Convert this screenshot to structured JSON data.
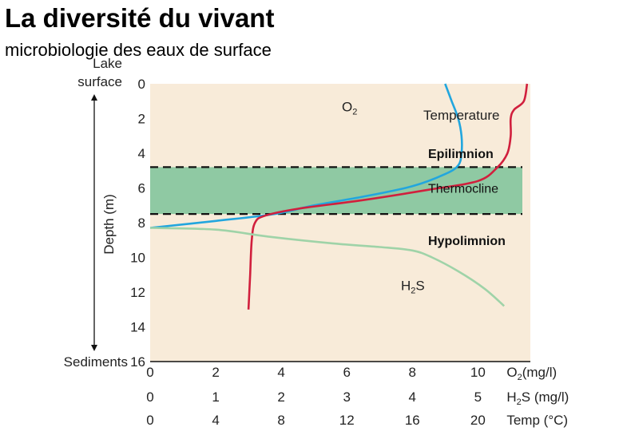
{
  "slide": {
    "title": "La diversité du vivant",
    "subtitle": "microbiologie des eaux de surface"
  },
  "chart_data": {
    "type": "line",
    "title": "",
    "ylabel": "Depth (m)",
    "y_top_label": [
      "Lake",
      "surface"
    ],
    "y_bottom_label": "Sediments",
    "ylim": [
      0,
      16
    ],
    "y_inverted": true,
    "yticks": [
      0,
      2,
      4,
      6,
      8,
      10,
      12,
      14,
      16
    ],
    "x_axes": [
      {
        "name": "O2",
        "unit": "(mg/l)",
        "ticks": [
          0,
          2,
          4,
          6,
          8,
          10
        ]
      },
      {
        "name": "H2S",
        "unit": "(mg/l)",
        "ticks": [
          0,
          1,
          2,
          3,
          4,
          5
        ]
      },
      {
        "name": "Temp",
        "unit": "(°C)",
        "ticks": [
          0,
          4,
          8,
          12,
          16,
          20
        ]
      }
    ],
    "zones": [
      {
        "name": "Epilimnion",
        "depth": [
          0,
          4.8
        ]
      },
      {
        "name": "Thermocline",
        "depth": [
          4.8,
          7.5
        ],
        "color": "#8fc9a3"
      },
      {
        "name": "Hypolimnion",
        "depth": [
          7.5,
          16
        ]
      }
    ],
    "series": [
      {
        "name": "O2",
        "axis": "O2",
        "color": "#22a6de",
        "points": [
          [
            9.0,
            0
          ],
          [
            9.2,
            1
          ],
          [
            9.4,
            2
          ],
          [
            9.5,
            3
          ],
          [
            9.5,
            4
          ],
          [
            9.4,
            4.7
          ],
          [
            9.0,
            5.2
          ],
          [
            8.0,
            5.9
          ],
          [
            6.5,
            6.5
          ],
          [
            5.0,
            7.0
          ],
          [
            3.8,
            7.5
          ],
          [
            2.0,
            7.9
          ],
          [
            0,
            8.3
          ]
        ]
      },
      {
        "name": "Temperature",
        "axis": "Temp",
        "color": "#d11f3d",
        "points": [
          [
            23.0,
            0
          ],
          [
            22.8,
            1
          ],
          [
            22.2,
            1.5
          ],
          [
            22.0,
            2
          ],
          [
            22.0,
            3
          ],
          [
            21.8,
            4
          ],
          [
            21.2,
            4.8
          ],
          [
            20.0,
            5.6
          ],
          [
            17.0,
            6.1
          ],
          [
            13.0,
            6.7
          ],
          [
            9.0,
            7.2
          ],
          [
            7.0,
            7.6
          ],
          [
            6.4,
            8.0
          ],
          [
            6.2,
            9
          ],
          [
            6.1,
            11
          ],
          [
            6.0,
            13
          ]
        ]
      },
      {
        "name": "H2S",
        "axis": "H2S",
        "color": "#9fd3a8",
        "points": [
          [
            0,
            8.3
          ],
          [
            1.0,
            8.4
          ],
          [
            1.8,
            8.8
          ],
          [
            2.8,
            9.2
          ],
          [
            3.5,
            9.4
          ],
          [
            4.0,
            9.6
          ],
          [
            4.3,
            10.0
          ],
          [
            4.7,
            10.8
          ],
          [
            5.1,
            11.8
          ],
          [
            5.4,
            12.8
          ]
        ]
      }
    ],
    "series_labels": {
      "O2": {
        "main": "O",
        "sub": "2"
      },
      "Temperature": {
        "main": "Temperature"
      },
      "H2S": {
        "main": "H",
        "sub": "2",
        "rest": "S"
      }
    }
  }
}
